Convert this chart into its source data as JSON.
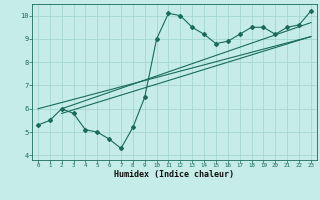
{
  "title": "",
  "xlabel": "Humidex (Indice chaleur)",
  "ylabel": "",
  "bg_color": "#c5ece6",
  "line_color": "#1a6b5a",
  "grid_color": "#9fd4cc",
  "x_data": [
    0,
    1,
    2,
    3,
    4,
    5,
    6,
    7,
    8,
    9,
    10,
    11,
    12,
    13,
    14,
    15,
    16,
    17,
    18,
    19,
    20,
    21,
    22,
    23
  ],
  "y_data": [
    5.3,
    5.5,
    6.0,
    5.8,
    5.1,
    5.0,
    4.7,
    4.3,
    5.2,
    6.5,
    9.0,
    10.1,
    10.0,
    9.5,
    9.2,
    8.8,
    8.9,
    9.2,
    9.5,
    9.5,
    9.2,
    9.5,
    9.6,
    10.2
  ],
  "trend1_x": [
    0,
    23
  ],
  "trend1_y": [
    6.0,
    9.1
  ],
  "trend2_x": [
    2,
    23
  ],
  "trend2_y": [
    6.0,
    9.7
  ],
  "trend3_x": [
    2,
    23
  ],
  "trend3_y": [
    5.8,
    9.1
  ],
  "xlim": [
    -0.5,
    23.5
  ],
  "ylim": [
    3.8,
    10.5
  ],
  "yticks": [
    4,
    5,
    6,
    7,
    8,
    9,
    10
  ],
  "xticks": [
    0,
    1,
    2,
    3,
    4,
    5,
    6,
    7,
    8,
    9,
    10,
    11,
    12,
    13,
    14,
    15,
    16,
    17,
    18,
    19,
    20,
    21,
    22,
    23
  ]
}
